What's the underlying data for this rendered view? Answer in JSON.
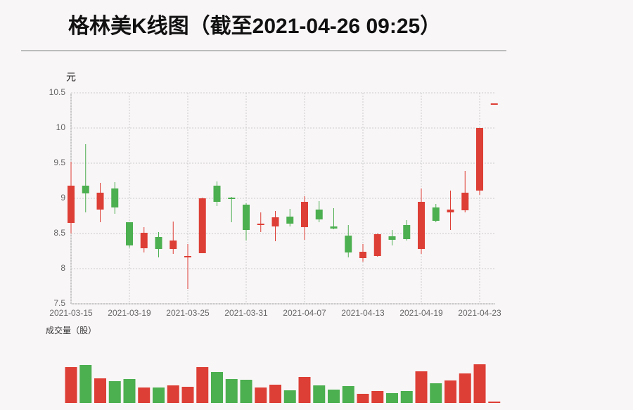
{
  "chart_data": [
    {
      "type": "candlestick",
      "title": "格林美K线图（截至2021-04-26 09:25）",
      "y_label": "元",
      "categories": [
        "2021-03-15",
        null,
        null,
        null,
        "2021-03-19",
        null,
        null,
        null,
        "2021-03-25",
        null,
        null,
        null,
        "2021-03-31",
        null,
        null,
        null,
        "2021-04-07",
        null,
        null,
        null,
        "2021-04-13",
        null,
        null,
        null,
        "2021-04-19",
        null,
        null,
        null,
        "2021-04-23",
        null
      ],
      "open": [
        8.65,
        9.18,
        8.84,
        9.14,
        8.66,
        8.29,
        8.45,
        8.28,
        8.16,
        8.22,
        9.18,
        9.01,
        8.91,
        8.62,
        8.6,
        8.74,
        8.59,
        8.84,
        8.6,
        8.47,
        8.15,
        8.18,
        8.46,
        8.62,
        8.28,
        8.87,
        8.8,
        8.83,
        9.11,
        10.34
      ],
      "close": [
        9.18,
        9.07,
        9.08,
        8.87,
        8.33,
        8.51,
        8.28,
        8.4,
        8.18,
        9.0,
        8.95,
        8.99,
        8.55,
        8.64,
        8.73,
        8.64,
        8.95,
        8.7,
        8.57,
        8.23,
        8.24,
        8.49,
        8.41,
        8.42,
        8.95,
        8.68,
        8.84,
        9.08,
        10.0,
        10.35
      ],
      "high": [
        9.52,
        9.77,
        9.22,
        9.23,
        8.66,
        8.59,
        8.52,
        8.67,
        8.35,
        9.01,
        9.24,
        9.02,
        8.93,
        8.8,
        8.82,
        8.85,
        9.03,
        8.96,
        8.86,
        8.62,
        8.35,
        8.5,
        8.55,
        8.69,
        9.14,
        8.92,
        9.11,
        9.39,
        10.0,
        10.35
      ],
      "low": [
        8.5,
        8.8,
        8.66,
        8.78,
        8.3,
        8.23,
        8.16,
        8.21,
        7.71,
        8.22,
        8.89,
        8.66,
        8.4,
        8.52,
        8.39,
        8.6,
        8.41,
        8.66,
        8.56,
        8.16,
        8.1,
        8.17,
        8.33,
        8.4,
        8.21,
        8.66,
        8.55,
        8.8,
        9.05,
        10.34
      ],
      "up_color": "#dd3e35",
      "down_color": "#4caf50",
      "ylim": [
        7.5,
        10.5
      ],
      "yticks": [
        10.5,
        10,
        9.5,
        9,
        8.5,
        8,
        7.5
      ],
      "grid": true
    },
    {
      "type": "bar",
      "title": "成交量（股）",
      "values": [
        51,
        54,
        35,
        31,
        34,
        22,
        22,
        25,
        23,
        51,
        44,
        34,
        33,
        22,
        26,
        18,
        37,
        25,
        19,
        24,
        13,
        17,
        14,
        17,
        45,
        28,
        32,
        42,
        55,
        2
      ]
    }
  ]
}
